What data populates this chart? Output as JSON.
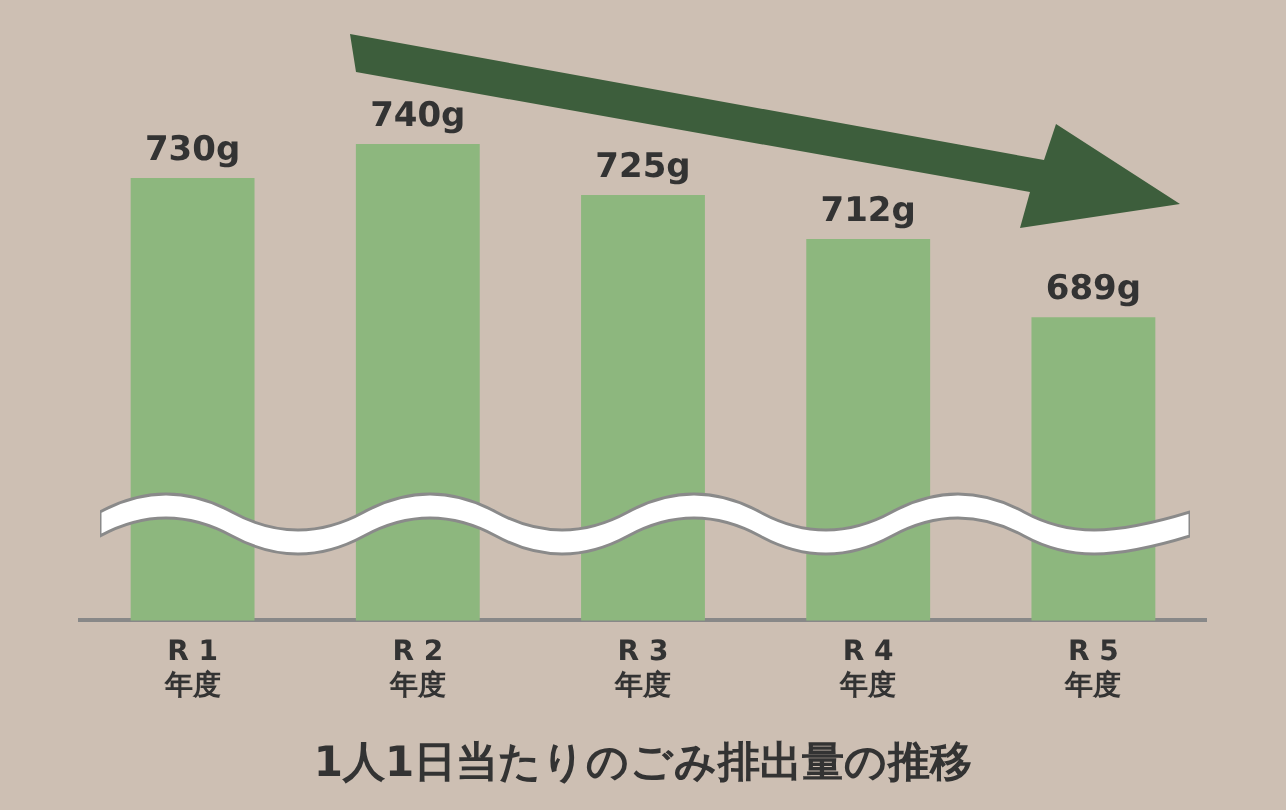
{
  "chart_data": {
    "type": "bar",
    "title": "1人1日当たりのごみ排出量の推移",
    "categories": [
      "R 1\n年度",
      "R 2\n年度",
      "R 3\n年度",
      "R 4\n年度",
      "R 5\n年度"
    ],
    "values": [
      730,
      740,
      725,
      712,
      689
    ],
    "value_labels": [
      "730g",
      "740g",
      "725g",
      "712g",
      "689g"
    ],
    "color": "#8db77e"
  }
}
